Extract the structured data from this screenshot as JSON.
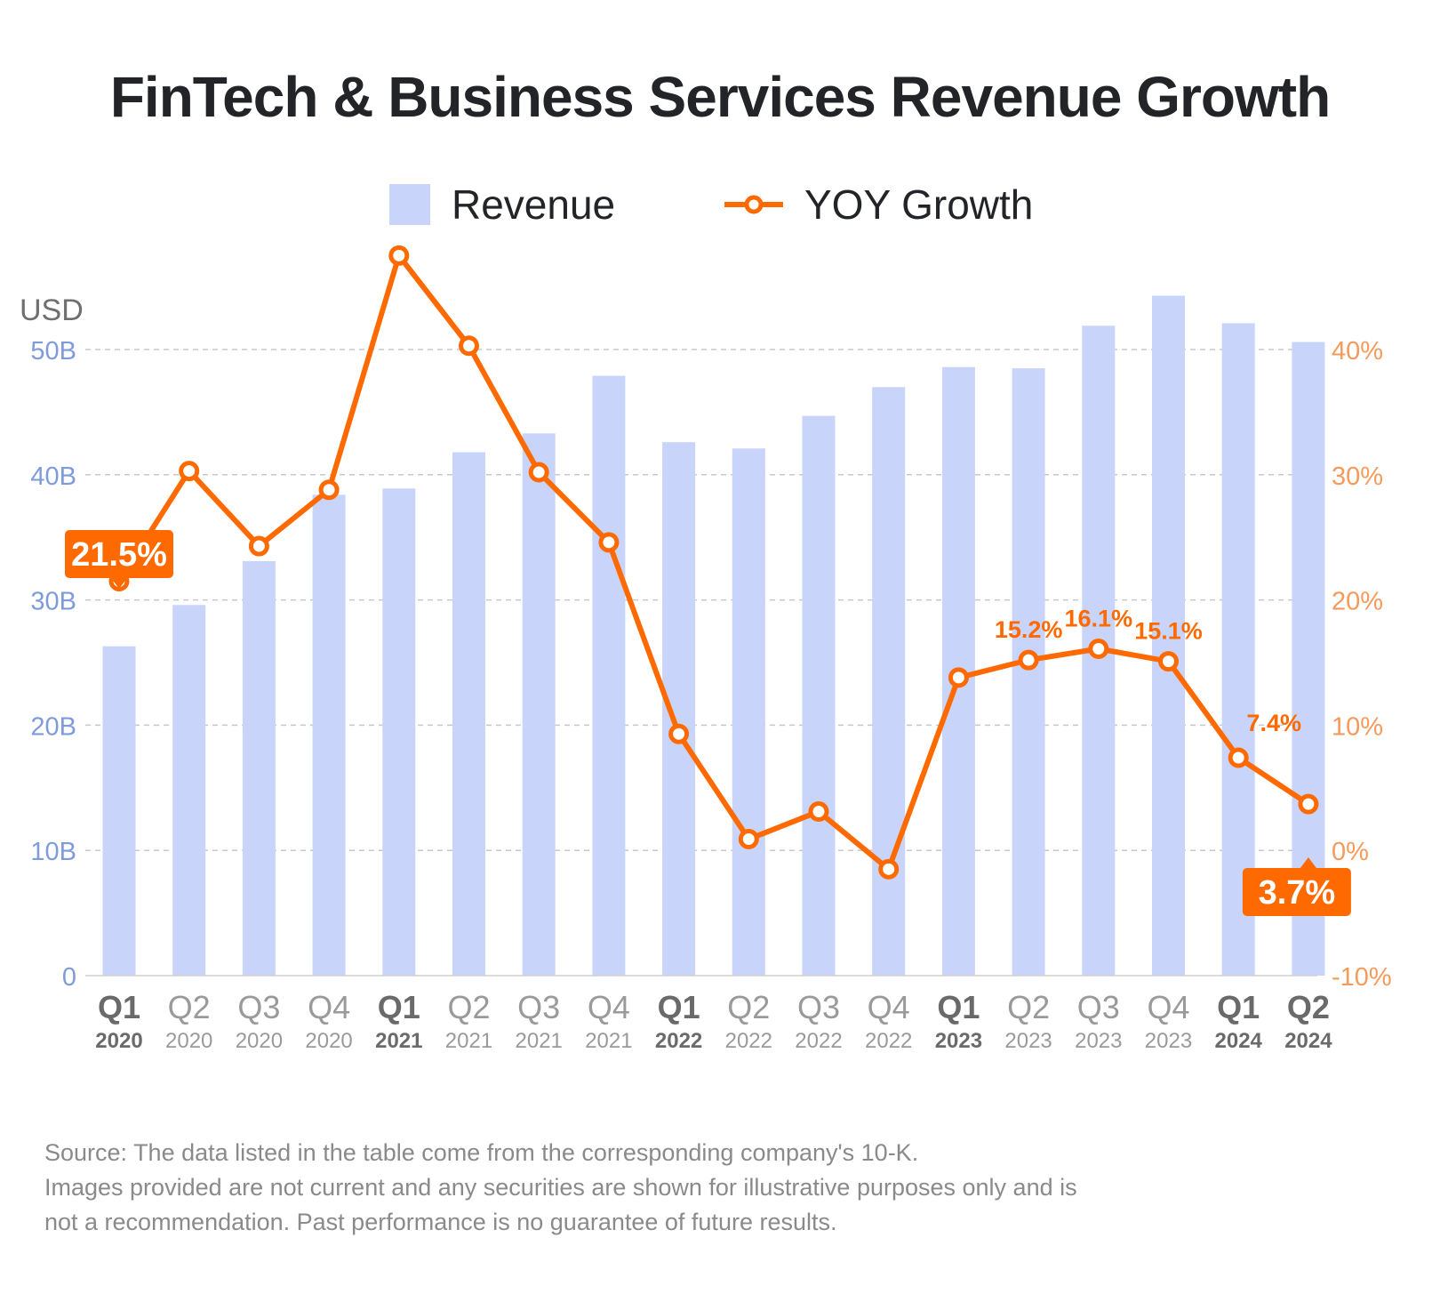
{
  "title": "FinTech & Business Services Revenue Growth",
  "legend": {
    "revenue": "Revenue",
    "growth": "YOY Growth"
  },
  "colors": {
    "bar": "#c9d4fb",
    "line": "#ff6a00",
    "left_axis": "#7f9bdc",
    "right_axis": "#f59a5d",
    "grid": "#c8c8c8",
    "text": "#222428"
  },
  "chart_data": {
    "type": "bar+line",
    "y_unit_label": "USD",
    "left_axis": {
      "ticks": [
        "0",
        "10B",
        "20B",
        "30B",
        "40B",
        "50B"
      ],
      "ylim": [
        0,
        50
      ]
    },
    "right_axis": {
      "ticks": [
        "-10%",
        "0%",
        "10%",
        "20%",
        "30%",
        "40%"
      ],
      "ylim": [
        -10,
        40
      ]
    },
    "grid": true,
    "legend_position": "top-center",
    "categories": [
      {
        "q": "Q1",
        "y": "2020",
        "bold": true
      },
      {
        "q": "Q2",
        "y": "2020",
        "bold": false
      },
      {
        "q": "Q3",
        "y": "2020",
        "bold": false
      },
      {
        "q": "Q4",
        "y": "2020",
        "bold": false
      },
      {
        "q": "Q1",
        "y": "2021",
        "bold": true
      },
      {
        "q": "Q2",
        "y": "2021",
        "bold": false
      },
      {
        "q": "Q3",
        "y": "2021",
        "bold": false
      },
      {
        "q": "Q4",
        "y": "2021",
        "bold": false
      },
      {
        "q": "Q1",
        "y": "2022",
        "bold": true
      },
      {
        "q": "Q2",
        "y": "2022",
        "bold": false
      },
      {
        "q": "Q3",
        "y": "2022",
        "bold": false
      },
      {
        "q": "Q4",
        "y": "2022",
        "bold": false
      },
      {
        "q": "Q1",
        "y": "2023",
        "bold": true
      },
      {
        "q": "Q2",
        "y": "2023",
        "bold": false
      },
      {
        "q": "Q3",
        "y": "2023",
        "bold": false
      },
      {
        "q": "Q4",
        "y": "2023",
        "bold": false
      },
      {
        "q": "Q1",
        "y": "2024",
        "bold": true
      },
      {
        "q": "Q2",
        "y": "2024",
        "bold": true
      }
    ],
    "series": [
      {
        "name": "Revenue",
        "type": "bar",
        "unit": "USD billions",
        "values": [
          26.3,
          29.6,
          33.1,
          38.4,
          38.9,
          41.8,
          43.3,
          47.9,
          42.6,
          42.1,
          44.7,
          47.0,
          48.6,
          48.5,
          51.9,
          54.3,
          52.1,
          50.6
        ]
      },
      {
        "name": "YOY Growth",
        "type": "line",
        "unit": "%",
        "values": [
          21.5,
          30.3,
          24.3,
          28.8,
          47.5,
          40.3,
          30.2,
          24.6,
          9.3,
          0.9,
          3.1,
          -1.5,
          13.8,
          15.2,
          16.1,
          15.1,
          7.4,
          3.7
        ]
      }
    ],
    "annotations": [
      {
        "index": 0,
        "text": "21.5%",
        "style": "box"
      },
      {
        "index": 13,
        "text": "15.2%",
        "style": "plain"
      },
      {
        "index": 14,
        "text": "16.1%",
        "style": "plain"
      },
      {
        "index": 15,
        "text": "15.1%",
        "style": "plain"
      },
      {
        "index": 16,
        "text": "7.4%",
        "style": "plain"
      },
      {
        "index": 17,
        "text": "3.7%",
        "style": "box"
      }
    ]
  },
  "source": [
    "Source: The data listed in the table come from the corresponding company's 10-K.",
    "Images provided are not current and any securities are shown for illustrative purposes only and is",
    "not a recommendation. Past performance is no guarantee of future results."
  ]
}
